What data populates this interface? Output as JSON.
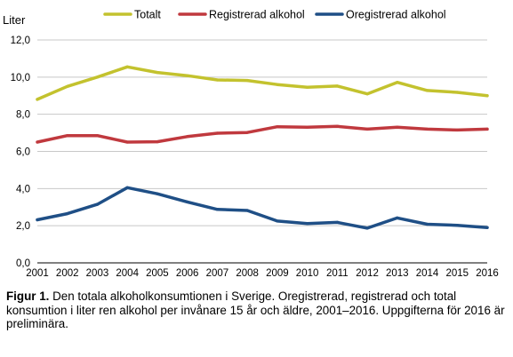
{
  "chart_data": {
    "type": "line",
    "ylabel": "Liter",
    "ylim": [
      0,
      12
    ],
    "ytick_step": 2,
    "x": [
      2001,
      2002,
      2003,
      2004,
      2005,
      2006,
      2007,
      2008,
      2009,
      2010,
      2011,
      2012,
      2013,
      2014,
      2015,
      2016
    ],
    "series": [
      {
        "name": "Totalt",
        "color": "#c3c22e",
        "values": [
          8.8,
          9.5,
          10.0,
          10.55,
          10.25,
          10.08,
          9.85,
          9.82,
          9.6,
          9.45,
          9.52,
          9.1,
          9.72,
          9.28,
          9.18,
          9.0
        ]
      },
      {
        "name": "Registrerad alkohol",
        "color": "#c0393e",
        "values": [
          6.5,
          6.85,
          6.85,
          6.5,
          6.52,
          6.8,
          6.98,
          7.02,
          7.33,
          7.3,
          7.35,
          7.2,
          7.3,
          7.2,
          7.15,
          7.2
        ]
      },
      {
        "name": "Oregistrerad alkohol",
        "color": "#1f4f86",
        "values": [
          2.32,
          2.65,
          3.15,
          4.05,
          3.72,
          3.28,
          2.88,
          2.82,
          2.25,
          2.12,
          2.18,
          1.87,
          2.42,
          2.08,
          2.02,
          1.9
        ]
      }
    ]
  },
  "caption": {
    "label": "Figur 1.",
    "text": "Den totala alkoholkonsumtionen i Sverige. Oregistrerad, registrerad och total konsumtion i liter ren alkohol per invånare 15 år och äldre, 2001–2016. Uppgifterna för 2016 är preliminära."
  }
}
